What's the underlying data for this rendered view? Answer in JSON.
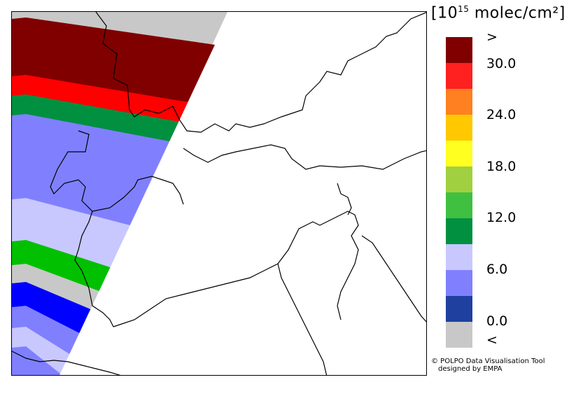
{
  "legend": {
    "title_prefix": "[10",
    "title_exp": "15",
    "title_suffix": " molec/cm²]",
    "colors": [
      "#800000",
      "#ff2020",
      "#ff8020",
      "#ffc800",
      "#ffff20",
      "#a0d040",
      "#40c040",
      "#009040",
      "#c8c8ff",
      "#8080ff",
      "#2040a0",
      "#c8c8c8"
    ],
    "labels": [
      ">",
      "30.0",
      "24.0",
      "18.0",
      "12.0",
      "6.0",
      "0.0",
      "<"
    ]
  },
  "map": {
    "swath_bands": [
      {
        "class": "> 30.0",
        "color": "#800000"
      },
      {
        "class": "24.0–30.0",
        "color": "#ff0000"
      },
      {
        "class": "12.0–18.0",
        "color": "#009040"
      },
      {
        "class": "6.0–12.0",
        "color": "#8080ff"
      },
      {
        "class": "0.0–6.0",
        "color": "#c8c8ff"
      },
      {
        "class": "12.0–18.0",
        "color": "#00c000"
      },
      {
        "class": "< 0.0",
        "color": "#c8c8c8"
      },
      {
        "class": "0.0–6.0",
        "color": "#0000ff"
      },
      {
        "class": "6.0–12.0",
        "color": "#8080ff"
      },
      {
        "class": "0.0–6.0",
        "color": "#c8c8ff"
      },
      {
        "class": "6.0–12.0",
        "color": "#8080ff"
      }
    ]
  },
  "credit": {
    "line1": "© POLPO Data Visualisation Tool",
    "line2": "designed by EMPA"
  }
}
